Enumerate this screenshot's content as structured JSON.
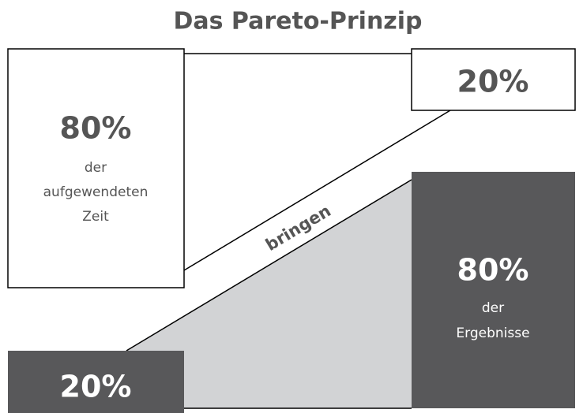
{
  "title": "Das Pareto-Prinzip",
  "left_box": {
    "value": "80%",
    "lines": [
      "der",
      "aufgewendeten",
      "Zeit"
    ]
  },
  "top_right_box": {
    "value": "20%"
  },
  "connector": "bringen",
  "right_box": {
    "value": "80%",
    "lines": [
      "der",
      "Ergebnisse"
    ]
  },
  "bottom_left_box": {
    "value": "20%"
  }
}
